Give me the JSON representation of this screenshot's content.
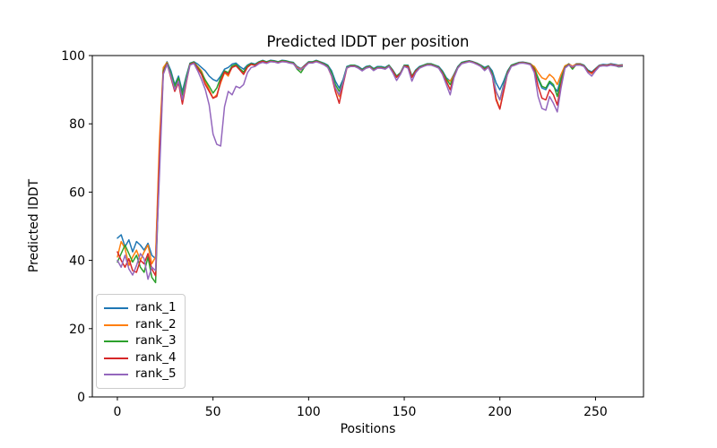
{
  "figure": {
    "background": "#ffffff"
  },
  "chart_data": {
    "type": "line",
    "title": "Predicted lDDT per position",
    "xlabel": "Positions",
    "ylabel": "Predicted lDDT",
    "xlim": [
      -13.1,
      275.1
    ],
    "ylim": [
      0,
      100
    ],
    "xticks": [
      0,
      50,
      100,
      150,
      200,
      250
    ],
    "yticks": [
      0,
      20,
      40,
      60,
      80,
      100
    ],
    "grid": false,
    "legend": {
      "position": "lower left",
      "entries": [
        "rank_1",
        "rank_2",
        "rank_3",
        "rank_4",
        "rank_5"
      ]
    },
    "x": [
      0,
      2,
      4,
      6,
      8,
      10,
      12,
      14,
      16,
      18,
      20,
      22,
      24,
      26,
      28,
      30,
      32,
      34,
      36,
      38,
      40,
      42,
      44,
      46,
      48,
      50,
      52,
      54,
      56,
      58,
      60,
      62,
      64,
      66,
      68,
      70,
      72,
      74,
      76,
      78,
      80,
      82,
      84,
      86,
      88,
      90,
      92,
      94,
      96,
      98,
      100,
      102,
      104,
      106,
      108,
      110,
      112,
      114,
      116,
      118,
      120,
      122,
      124,
      126,
      128,
      130,
      132,
      134,
      136,
      138,
      140,
      142,
      144,
      146,
      148,
      150,
      152,
      154,
      156,
      158,
      160,
      162,
      164,
      166,
      168,
      170,
      172,
      174,
      176,
      178,
      180,
      182,
      184,
      186,
      188,
      190,
      192,
      194,
      196,
      198,
      200,
      202,
      204,
      206,
      208,
      210,
      212,
      214,
      216,
      218,
      220,
      222,
      224,
      226,
      228,
      230,
      232,
      234,
      236,
      238,
      240,
      242,
      244,
      246,
      248,
      250,
      252,
      254,
      256,
      258,
      260,
      262,
      264
    ],
    "series": [
      {
        "name": "rank_1",
        "color": "#1f77b4",
        "values": [
          46.5,
          47.5,
          44,
          46,
          42.5,
          45.5,
          44.5,
          43,
          45,
          41.5,
          40.5,
          72,
          96,
          98.2,
          95.5,
          91.5,
          94,
          89.5,
          94,
          97.8,
          98.2,
          97.5,
          96.5,
          95.5,
          94,
          93,
          92.5,
          94,
          96,
          96.5,
          97.5,
          97.8,
          96.8,
          96,
          97.2,
          97.8,
          97.5,
          98.2,
          98.6,
          98.2,
          98.6,
          98.5,
          98.2,
          98.6,
          98.5,
          98.2,
          98,
          96.8,
          96.2,
          97.2,
          98.2,
          98.2,
          98.6,
          98.2,
          97.8,
          97.2,
          95.5,
          92.5,
          90.5,
          93,
          96.8,
          97.2,
          97.2,
          96.8,
          96,
          96.8,
          97,
          96.2,
          96.8,
          96.8,
          96.5,
          97.2,
          95.8,
          94,
          95,
          97.2,
          97.2,
          94,
          95.8,
          96.8,
          97.2,
          97.6,
          97.6,
          97.2,
          96.8,
          95.5,
          93.5,
          92.5,
          94.5,
          96.8,
          98,
          98.3,
          98.5,
          98.2,
          97.8,
          97.2,
          96.5,
          97,
          95.5,
          92,
          90,
          92.5,
          95.5,
          97.2,
          97.6,
          98,
          98.1,
          97.9,
          97.6,
          96.5,
          93,
          90.5,
          90,
          92,
          91,
          89.5,
          93.5,
          96.8,
          97.6,
          96.8,
          97.6,
          97.6,
          97.2,
          95.8,
          95.2,
          96.2,
          97.2,
          97.4,
          97.3,
          97.6,
          97.4,
          97.2,
          97.3
        ]
      },
      {
        "name": "rank_2",
        "color": "#ff7f0e",
        "values": [
          41,
          45.5,
          43.5,
          38.5,
          41,
          43,
          40,
          42.5,
          44.5,
          39,
          41,
          75,
          96.5,
          98,
          94.5,
          90.5,
          93,
          88,
          93,
          97.5,
          98,
          96.8,
          95.5,
          92.5,
          90,
          87.5,
          88.5,
          92,
          95,
          94,
          96.8,
          97.2,
          96,
          94.8,
          96.8,
          97.5,
          97.2,
          98,
          98.4,
          98,
          98.4,
          98.3,
          98,
          98.4,
          98.3,
          98,
          97.8,
          96.5,
          96,
          97,
          98,
          98,
          98.4,
          98,
          97.5,
          96.8,
          94.5,
          90.5,
          88,
          92,
          96.5,
          97,
          97,
          96.5,
          95.7,
          96.5,
          96.8,
          95.8,
          96.5,
          96.5,
          96.2,
          97,
          95.5,
          93.8,
          94.8,
          97,
          96.5,
          93.8,
          95.5,
          96.5,
          97,
          97.4,
          97.4,
          97,
          96.5,
          95,
          93,
          92.5,
          94.2,
          96.5,
          97.8,
          98.1,
          98.4,
          98,
          97.6,
          97,
          96,
          96.8,
          94.5,
          87.5,
          84.5,
          90,
          95,
          97,
          97.4,
          97.9,
          98,
          97.8,
          97.5,
          96.8,
          95,
          93.5,
          93,
          94.5,
          93.5,
          91.5,
          94.5,
          97,
          97.5,
          96.9,
          97.5,
          97.5,
          97,
          95.5,
          94.7,
          96,
          97,
          97.2,
          97.1,
          97.4,
          97.2,
          97,
          97.1
        ]
      },
      {
        "name": "rank_3",
        "color": "#2ca02c",
        "values": [
          39.5,
          42,
          44.5,
          42,
          39.5,
          41.5,
          38,
          36.5,
          41,
          35,
          33.5,
          68,
          95.5,
          97.8,
          94.8,
          91,
          93.5,
          88.5,
          93.5,
          97.6,
          98.1,
          96.5,
          95,
          92.8,
          91,
          89,
          90.5,
          93.5,
          95.5,
          95,
          97,
          97.4,
          96.2,
          95.2,
          97,
          97.6,
          97.3,
          98.1,
          98.5,
          98.1,
          98.5,
          98.4,
          98.1,
          98.5,
          98.4,
          98.1,
          97.9,
          96,
          95,
          96.8,
          98.1,
          98.1,
          98.5,
          98.1,
          97.6,
          97,
          95,
          91.5,
          89.5,
          92.5,
          96.6,
          97.1,
          97.1,
          96.6,
          95.8,
          96.6,
          96.9,
          96,
          96.6,
          96.6,
          96.3,
          97.1,
          95.6,
          93.9,
          94.9,
          97.1,
          97,
          93.9,
          95.6,
          96.6,
          97.1,
          97.5,
          97.5,
          97.1,
          96.6,
          95.2,
          93.2,
          91.5,
          94,
          96.6,
          97.9,
          98.2,
          98.4,
          98.1,
          97.7,
          97.1,
          96.2,
          96.9,
          94.8,
          89.5,
          87,
          91.5,
          95.2,
          97.1,
          97.5,
          97.9,
          98,
          97.8,
          97.5,
          96.2,
          93.5,
          91,
          90.5,
          92.5,
          91.5,
          88,
          93,
          96.6,
          97.4,
          96,
          97.4,
          97.4,
          97,
          95.6,
          95,
          96,
          96.9,
          97.1,
          97,
          97.3,
          97.1,
          96.7,
          96.8
        ]
      },
      {
        "name": "rank_4",
        "color": "#d62728",
        "values": [
          42.5,
          40,
          38,
          40.5,
          37,
          36.5,
          40,
          39,
          42,
          37.5,
          35.5,
          70,
          95,
          97.6,
          93.5,
          89.5,
          92,
          85.8,
          92,
          97.4,
          97.9,
          96.2,
          94.5,
          91.5,
          89.5,
          87.5,
          88,
          92.5,
          95.2,
          94.5,
          96.5,
          97,
          95.8,
          94.5,
          96.6,
          97.4,
          97.1,
          97.9,
          98.3,
          97.9,
          98.3,
          98.2,
          97.9,
          98.3,
          98.2,
          97.9,
          97.7,
          96.3,
          95.8,
          96.9,
          97.9,
          97.9,
          98.3,
          97.9,
          97.4,
          96.6,
          94,
          89.5,
          86,
          91.5,
          96.3,
          96.9,
          96.9,
          96.4,
          95.6,
          96.4,
          96.7,
          95.7,
          96.4,
          96.4,
          96.1,
          96.9,
          95.4,
          93.6,
          94.7,
          96.9,
          96.8,
          93.6,
          95.4,
          96.4,
          96.9,
          97.3,
          97.3,
          96.9,
          96.4,
          94.8,
          92.5,
          90,
          93.8,
          96.4,
          97.7,
          98,
          98.3,
          98,
          97.5,
          96.9,
          95.8,
          96.7,
          94.2,
          87,
          84.3,
          89.5,
          94.8,
          96.9,
          97.3,
          97.8,
          97.9,
          97.7,
          97.4,
          95.8,
          91,
          87.5,
          87,
          90,
          88.5,
          85.5,
          91.5,
          96.4,
          97.3,
          96.5,
          97.3,
          97.3,
          96.9,
          95.4,
          94.9,
          95.9,
          96.9,
          97.1,
          97,
          97.3,
          97.1,
          96.9,
          97
        ]
      },
      {
        "name": "rank_5",
        "color": "#9467bd",
        "values": [
          40,
          38,
          41.5,
          37.5,
          35.7,
          38.5,
          42,
          40.5,
          34.5,
          38,
          37,
          65,
          94.5,
          97.4,
          94,
          90,
          92.5,
          87,
          92.5,
          97.2,
          97.7,
          95.5,
          93,
          90,
          85.5,
          77,
          74,
          73.5,
          85,
          89.5,
          88.5,
          91,
          90.5,
          91.5,
          95,
          96.5,
          96.8,
          97.6,
          98,
          97.7,
          98.2,
          98.1,
          97.8,
          98.2,
          98.1,
          97.8,
          97.6,
          96.2,
          95.9,
          96.7,
          97.8,
          97.8,
          98.2,
          97.8,
          97.3,
          96.5,
          94.2,
          90.5,
          88.5,
          92.2,
          96.4,
          96.8,
          96.8,
          96.3,
          95.5,
          96.3,
          96.6,
          95.6,
          96.3,
          96.3,
          96,
          96.8,
          95,
          92.7,
          94.5,
          96.8,
          96.3,
          92.5,
          95,
          96.3,
          96.8,
          97.2,
          97.2,
          96.8,
          96.3,
          94.5,
          91.5,
          88.5,
          93.5,
          96.3,
          97.6,
          97.9,
          98.2,
          97.9,
          97.4,
          96.8,
          95.6,
          96.6,
          94,
          89.5,
          87,
          91,
          94.5,
          96.8,
          97.2,
          97.7,
          97.8,
          97.6,
          97.3,
          95,
          88,
          84.5,
          84,
          88,
          86,
          83.5,
          90.5,
          96.3,
          97.2,
          96.7,
          97.2,
          97.2,
          96.8,
          95,
          94,
          95.5,
          96.8,
          97,
          96.9,
          97.2,
          97,
          96.8,
          96.9
        ]
      }
    ]
  }
}
